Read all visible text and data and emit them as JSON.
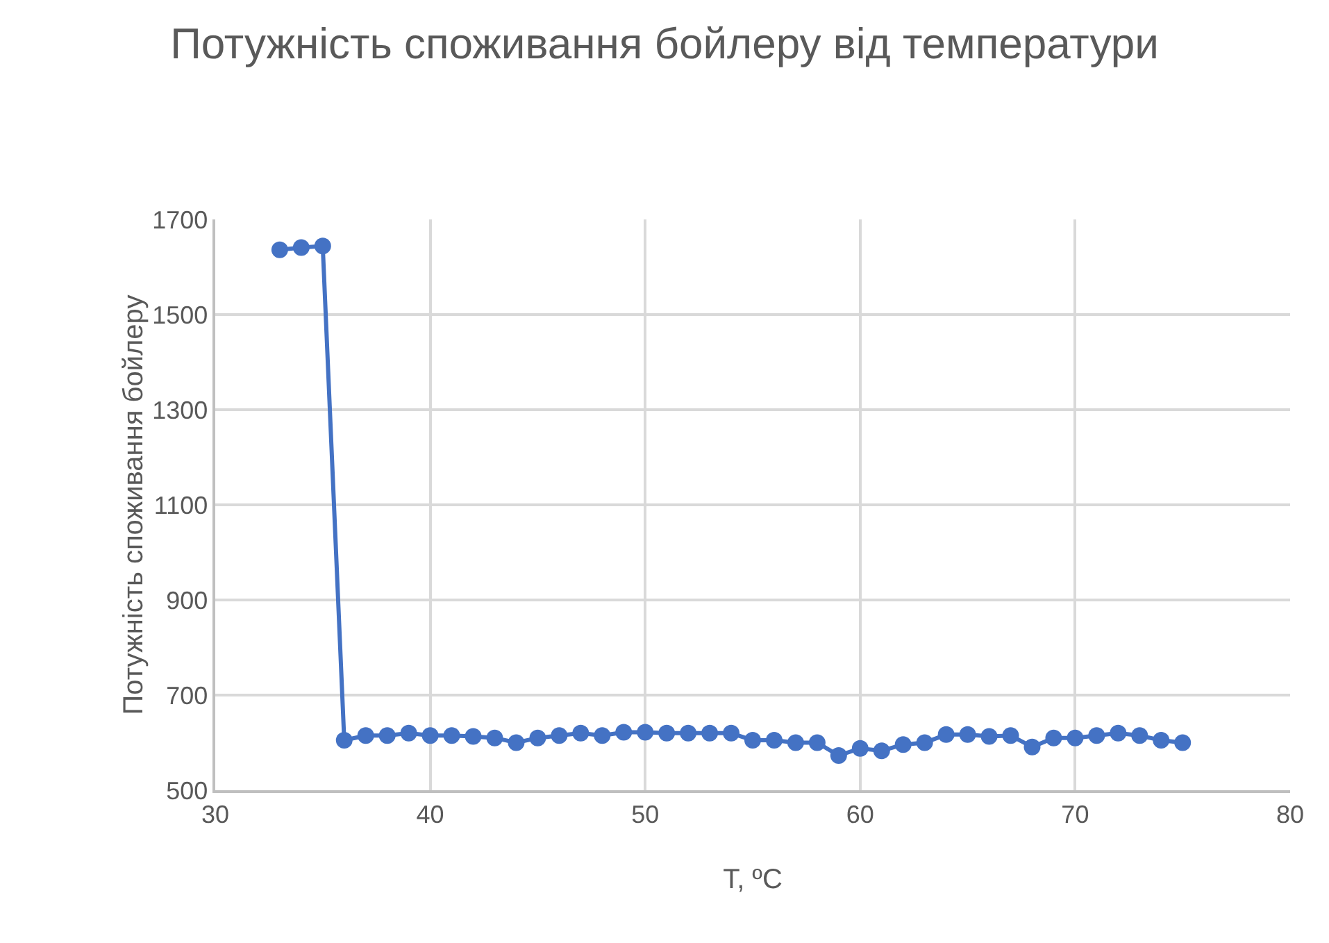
{
  "chart_data": {
    "type": "line",
    "title": "Потужність споживання бойлеру від температури",
    "xlabel": "T, ºC",
    "ylabel": "Потужність споживання бойлеру",
    "x": [
      33,
      34,
      35,
      36,
      37,
      38,
      39,
      40,
      41,
      42,
      43,
      44,
      45,
      46,
      47,
      48,
      49,
      50,
      51,
      52,
      53,
      54,
      55,
      56,
      57,
      58,
      59,
      60,
      61,
      62,
      63,
      64,
      65,
      66,
      67,
      68,
      69,
      70,
      71,
      72,
      73,
      74,
      75
    ],
    "series": [
      {
        "color": "#4472c4",
        "values": [
          1636,
          1641,
          1644,
          605,
          615,
          615,
          620,
          615,
          615,
          613,
          610,
          600,
          610,
          615,
          620,
          615,
          622,
          622,
          620,
          620,
          620,
          620,
          605,
          605,
          600,
          600,
          573,
          588,
          583,
          596,
          600,
          617,
          617,
          613,
          615,
          591,
          610,
          610,
          615,
          620,
          615,
          605,
          600
        ]
      }
    ],
    "xlim": [
      30,
      80
    ],
    "xticks": [
      30,
      40,
      50,
      60,
      70,
      80
    ],
    "ylim": [
      500,
      1700
    ],
    "yticks": [
      500,
      700,
      900,
      1100,
      1300,
      1500,
      1700
    ],
    "grid": true,
    "marker": "circle",
    "line_style": "solid",
    "legend": false
  }
}
